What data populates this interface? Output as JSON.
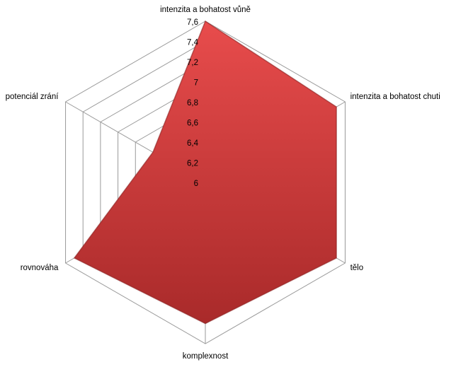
{
  "chart_data": {
    "type": "radar",
    "categories": [
      "intenzita a bohatost vůně",
      "intenzita a bohatost chuti",
      "tělo",
      "komplexnost",
      "rovnováha",
      "potenciál zrání"
    ],
    "values": [
      7.6,
      7.5,
      7.5,
      7.4,
      7.5,
      6.6
    ],
    "color": "#d03c3c",
    "ylim": [
      6,
      7.6
    ],
    "yticks": [
      6,
      {
        "value": 6.2,
        "label": "6,2"
      },
      {
        "value": 6.4,
        "label": "6,4"
      },
      {
        "value": 6.6,
        "label": "6,6"
      },
      {
        "value": 6.8,
        "label": "6,8"
      },
      7,
      {
        "value": 7.2,
        "label": "7,2"
      },
      {
        "value": 7.4,
        "label": "7,4"
      },
      {
        "value": 7.6,
        "label": "7,6"
      }
    ],
    "grid": true
  }
}
